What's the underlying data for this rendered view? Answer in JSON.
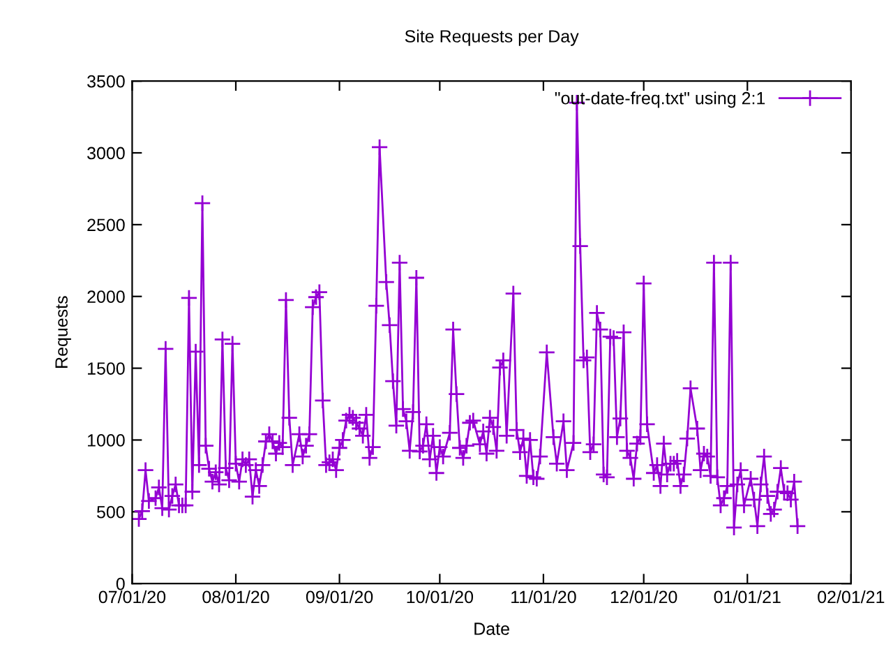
{
  "chart_data": {
    "type": "line",
    "title": "Site Requests per Day",
    "xlabel": "Date",
    "ylabel": "Requests",
    "xlim": [
      "2020-07-01",
      "2021-02-01"
    ],
    "xticks": [
      {
        "value": "2020-07-01",
        "label": "07/01/20"
      },
      {
        "value": "2020-08-01",
        "label": "08/01/20"
      },
      {
        "value": "2020-09-01",
        "label": "09/01/20"
      },
      {
        "value": "2020-10-01",
        "label": "10/01/20"
      },
      {
        "value": "2020-11-01",
        "label": "11/01/20"
      },
      {
        "value": "2020-12-01",
        "label": "12/01/20"
      },
      {
        "value": "2021-01-01",
        "label": "01/01/21"
      },
      {
        "value": "2021-02-01",
        "label": "02/01/21"
      }
    ],
    "ylim": [
      0,
      3500
    ],
    "yticks": [
      0,
      500,
      1000,
      1500,
      2000,
      2500,
      3000,
      3500
    ],
    "grid": false,
    "legend": "top right",
    "marker": "cross",
    "line_style": "solid",
    "series": [
      {
        "name": "\"out-date-freq.txt\" using 2:1",
        "color": "#9400d3",
        "x": [
          "2020-07-03",
          "2020-07-04",
          "2020-07-05",
          "2020-07-06",
          "2020-07-08",
          "2020-07-09",
          "2020-07-10",
          "2020-07-11",
          "2020-07-12",
          "2020-07-13",
          "2020-07-14",
          "2020-07-15",
          "2020-07-16",
          "2020-07-17",
          "2020-07-18",
          "2020-07-19",
          "2020-07-20",
          "2020-07-21",
          "2020-07-22",
          "2020-07-23",
          "2020-07-24",
          "2020-07-25",
          "2020-07-26",
          "2020-07-27",
          "2020-07-28",
          "2020-07-29",
          "2020-07-30",
          "2020-07-31",
          "2020-08-01",
          "2020-08-02",
          "2020-08-03",
          "2020-08-04",
          "2020-08-05",
          "2020-08-06",
          "2020-08-07",
          "2020-08-08",
          "2020-08-09",
          "2020-08-10",
          "2020-08-11",
          "2020-08-12",
          "2020-08-13",
          "2020-08-14",
          "2020-08-15",
          "2020-08-16",
          "2020-08-17",
          "2020-08-18",
          "2020-08-20",
          "2020-08-21",
          "2020-08-22",
          "2020-08-23",
          "2020-08-24",
          "2020-08-25",
          "2020-08-26",
          "2020-08-27",
          "2020-08-28",
          "2020-08-29",
          "2020-08-30",
          "2020-08-31",
          "2020-09-01",
          "2020-09-02",
          "2020-09-03",
          "2020-09-04",
          "2020-09-05",
          "2020-09-06",
          "2020-09-07",
          "2020-09-08",
          "2020-09-09",
          "2020-09-10",
          "2020-09-11",
          "2020-09-12",
          "2020-09-13",
          "2020-09-15",
          "2020-09-16",
          "2020-09-17",
          "2020-09-18",
          "2020-09-19",
          "2020-09-20",
          "2020-09-21",
          "2020-09-22",
          "2020-09-23",
          "2020-09-24",
          "2020-09-25",
          "2020-09-26",
          "2020-09-27",
          "2020-09-28",
          "2020-09-29",
          "2020-09-30",
          "2020-10-01",
          "2020-10-02",
          "2020-10-04",
          "2020-10-05",
          "2020-10-06",
          "2020-10-07",
          "2020-10-08",
          "2020-10-09",
          "2020-10-10",
          "2020-10-11",
          "2020-10-13",
          "2020-10-14",
          "2020-10-15",
          "2020-10-16",
          "2020-10-17",
          "2020-10-18",
          "2020-10-19",
          "2020-10-20",
          "2020-10-21",
          "2020-10-23",
          "2020-10-24",
          "2020-10-25",
          "2020-10-26",
          "2020-10-27",
          "2020-10-28",
          "2020-10-29",
          "2020-10-30",
          "2020-10-31",
          "2020-11-02",
          "2020-11-04",
          "2020-11-05",
          "2020-11-07",
          "2020-11-08",
          "2020-11-10",
          "2020-11-11",
          "2020-11-12",
          "2020-11-13",
          "2020-11-14",
          "2020-11-15",
          "2020-11-16",
          "2020-11-17",
          "2020-11-18",
          "2020-11-19",
          "2020-11-20",
          "2020-11-21",
          "2020-11-22",
          "2020-11-23",
          "2020-11-24",
          "2020-11-25",
          "2020-11-26",
          "2020-11-27",
          "2020-11-28",
          "2020-11-29",
          "2020-11-30",
          "2020-12-01",
          "2020-12-02",
          "2020-12-04",
          "2020-12-05",
          "2020-12-06",
          "2020-12-07",
          "2020-12-08",
          "2020-12-09",
          "2020-12-10",
          "2020-12-11",
          "2020-12-12",
          "2020-12-13",
          "2020-12-14",
          "2020-12-15",
          "2020-12-17",
          "2020-12-18",
          "2020-12-19",
          "2020-12-20",
          "2020-12-21",
          "2020-12-22",
          "2020-12-23",
          "2020-12-24",
          "2020-12-25",
          "2020-12-26",
          "2020-12-27",
          "2020-12-28",
          "2020-12-29",
          "2020-12-30",
          "2020-12-31",
          "2021-01-02",
          "2021-01-03",
          "2021-01-04",
          "2021-01-05",
          "2021-01-06",
          "2021-01-07",
          "2021-01-08",
          "2021-01-09",
          "2021-01-10",
          "2021-01-11",
          "2021-01-12",
          "2021-01-13",
          "2021-01-14",
          "2021-01-15",
          "2021-01-16"
        ],
        "values": [
          450,
          505,
          790,
          575,
          595,
          670,
          525,
          1635,
          515,
          610,
          690,
          545,
          545,
          545,
          1990,
          640,
          1615,
          825,
          2650,
          960,
          800,
          710,
          775,
          690,
          1700,
          805,
          720,
          1670,
          835,
          710,
          865,
          825,
          865,
          605,
          790,
          680,
          825,
          990,
          1040,
          990,
          905,
          980,
          950,
          1975,
          1155,
          825,
          1040,
          885,
          960,
          1040,
          1925,
          1995,
          2030,
          1275,
          825,
          845,
          865,
          790,
          945,
          1000,
          1135,
          1175,
          1155,
          1120,
          1080,
          1030,
          1175,
          875,
          950,
          1935,
          3040,
          2100,
          1800,
          1410,
          1100,
          2235,
          1215,
          1130,
          925,
          1195,
          2130,
          920,
          960,
          1110,
          865,
          1030,
          770,
          950,
          885,
          1050,
          1770,
          1320,
          945,
          875,
          960,
          1120,
          1135,
          970,
          1060,
          905,
          1155,
          1090,
          925,
          1505,
          1555,
          1030,
          2020,
          1070,
          915,
          1010,
          750,
          1000,
          740,
          730,
          885,
          1610,
          1020,
          835,
          1130,
          790,
          980,
          3350,
          2350,
          1555,
          1575,
          915,
          970,
          1885,
          1770,
          760,
          740,
          1720,
          1710,
          1020,
          1150,
          1750,
          925,
          875,
          730,
          975,
          1020,
          2090,
          1110,
          770,
          825,
          680,
          975,
          760,
          835,
          835,
          855,
          680,
          760,
          1010,
          1360,
          1080,
          790,
          905,
          885,
          750,
          2235,
          740,
          545,
          595,
          680,
          2235,
          390,
          690,
          790,
          545,
          730,
          585,
          400,
          690,
          885,
          610,
          485,
          515,
          640,
          805,
          640,
          630,
          585,
          710,
          400
        ]
      }
    ]
  }
}
